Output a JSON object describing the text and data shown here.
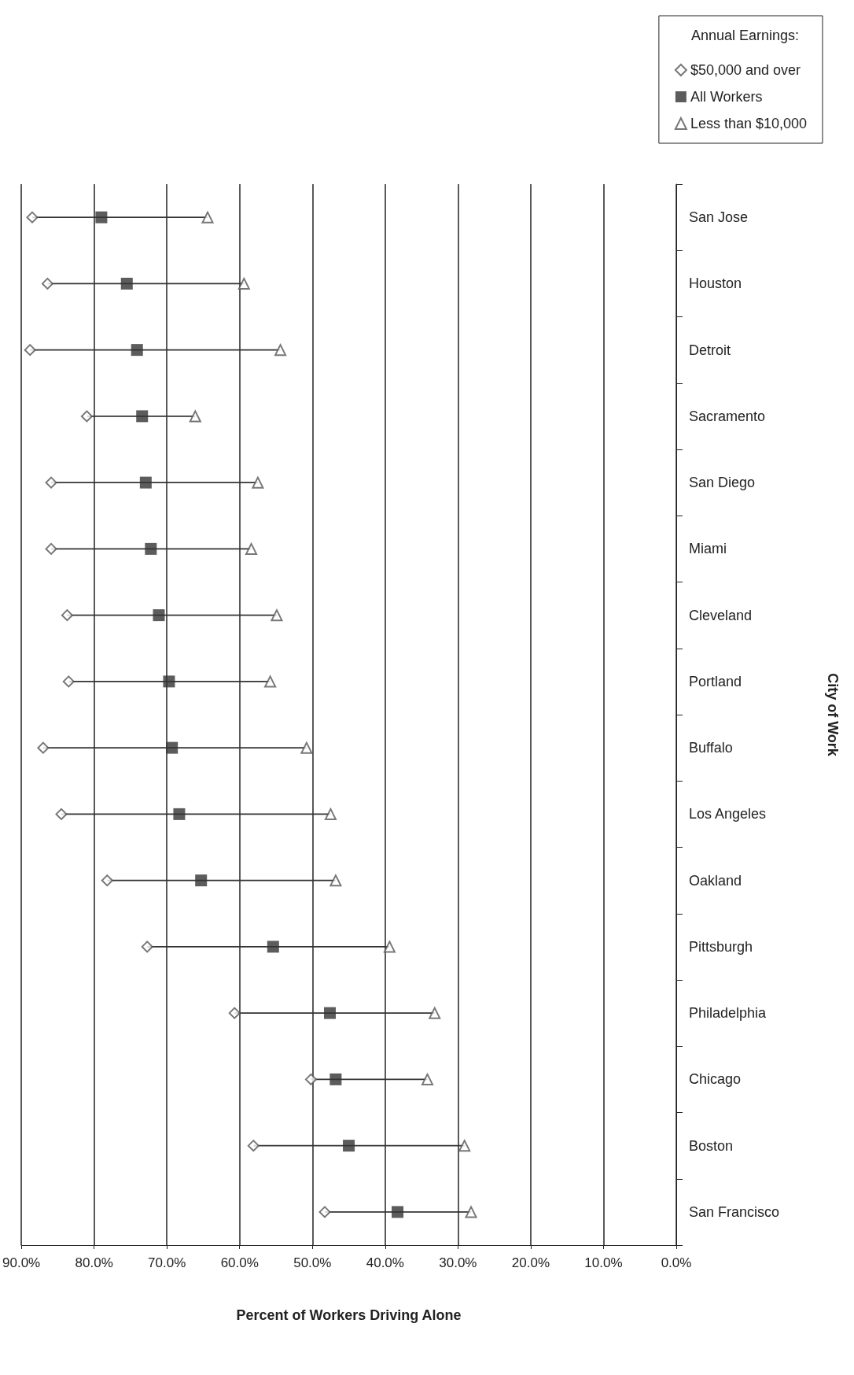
{
  "chart_data": {
    "type": "scatter",
    "orientation": "horizontal",
    "xlabel": "Percent of Workers Driving Alone",
    "ylabel": "City of Work",
    "legend_title": "Annual Earnings:",
    "categories": [
      "San Jose",
      "Houston",
      "Detroit",
      "Sacramento",
      "San Diego",
      "Miami",
      "Cleveland",
      "Portland",
      "Buffalo",
      "Los Angeles",
      "Oakland",
      "Pittsburgh",
      "Philadelphia",
      "Chicago",
      "Boston",
      "San Francisco"
    ],
    "xlim": [
      90,
      0
    ],
    "xticks": [
      {
        "value": 90,
        "label": "90.0%"
      },
      {
        "value": 80,
        "label": "80.0%"
      },
      {
        "value": 70,
        "label": "70.0%"
      },
      {
        "value": 60,
        "label": "60.0%"
      },
      {
        "value": 50,
        "label": "50.0%"
      },
      {
        "value": 40,
        "label": "40.0%"
      },
      {
        "value": 30,
        "label": "30.0%"
      },
      {
        "value": 20,
        "label": "20.0%"
      },
      {
        "value": 10,
        "label": "10.0%"
      },
      {
        "value": 0,
        "label": "0.0%"
      }
    ],
    "grid": "x",
    "legend": "top right",
    "series": [
      {
        "type": "bar",
        "color": "#333333",
        "base": [
          64.4,
          59.4,
          54.4,
          66.1,
          57.5,
          58.4,
          54.9,
          55.8,
          50.8,
          47.5,
          46.8,
          39.4,
          33.2,
          34.2,
          29.1,
          28.2
        ],
        "values": [
          24.1,
          27.0,
          34.4,
          14.9,
          28.4,
          27.5,
          28.8,
          27.7,
          36.2,
          37.0,
          31.4,
          33.3,
          27.5,
          16.0,
          29.0,
          20.1
        ]
      },
      {
        "name": "$50,000 and over",
        "color": "#555555",
        "marker": "diamond",
        "values": [
          88.5,
          86.4,
          88.8,
          81.0,
          85.9,
          85.9,
          83.7,
          83.5,
          87.0,
          84.5,
          78.2,
          72.7,
          60.7,
          50.2,
          58.1,
          48.3
        ]
      },
      {
        "name": "All Workers",
        "color": "#333333",
        "marker": "square",
        "values": [
          79.0,
          75.5,
          74.1,
          73.4,
          72.9,
          72.2,
          71.1,
          69.7,
          69.3,
          68.3,
          65.3,
          55.4,
          47.6,
          46.8,
          45.0,
          38.3
        ]
      },
      {
        "name": "Less than $10,000",
        "color": "#555555",
        "marker": "triangle",
        "values": [
          64.4,
          59.4,
          54.4,
          66.1,
          57.5,
          58.4,
          54.9,
          55.8,
          50.8,
          47.5,
          46.8,
          39.4,
          33.2,
          34.2,
          29.1,
          28.2
        ]
      }
    ]
  }
}
